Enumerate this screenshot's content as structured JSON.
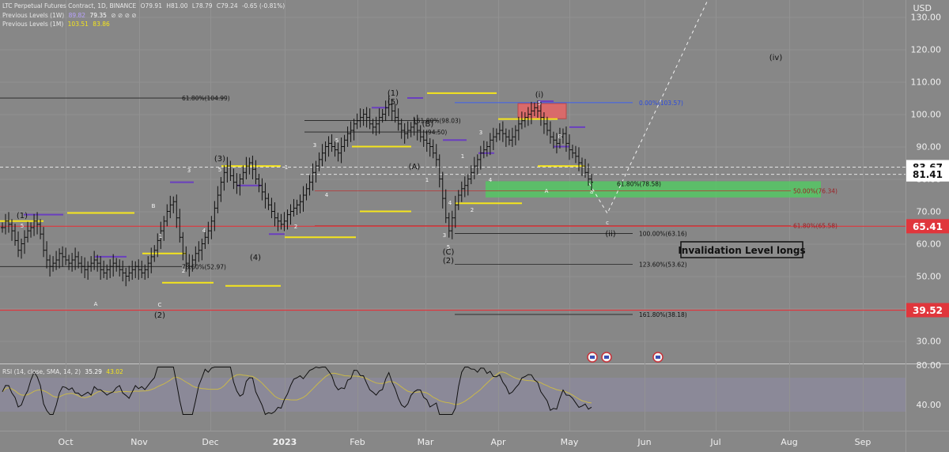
{
  "header": {
    "symbol_line": "LTC Perpetual Futures Contract, 1D, BINANCE",
    "ohlc": [
      "O79.91",
      "H81.00",
      "L78.79",
      "C79.24",
      "-0.65 (-0.81%)"
    ],
    "prev_1w_label": "Previous Levels (1W)",
    "prev_1w_values": [
      "89.82",
      "79.35",
      "⊘ ⊘ ⊘ ⊘"
    ],
    "prev_1m_label": "Previous Levels (1M)",
    "prev_1m_values": [
      "103.51",
      "83.86"
    ]
  },
  "rsi_header": {
    "label": "RSI (14, close, SMA, 14, 2)",
    "rsi_value": "35.29",
    "sma_value": "43.02"
  },
  "axis": {
    "unit": "USD"
  },
  "colors": {
    "background": "#878787",
    "candle": "#101010",
    "rsi_line": "#101010",
    "rsi_sma": "#c9b84a",
    "yellow_levels": "#f5e51c",
    "purple_levels": "#6a3fbf",
    "red_lines": "#e0363c",
    "blue_line": "#3d5ff0",
    "green_zone": "#55c764",
    "red_zone": "#d96a6a"
  },
  "chart_data": {
    "type": "candlestick",
    "title": "LTC Perpetual Futures Contract, 1D, BINANCE",
    "y_axis": {
      "unit": "USD",
      "ticks": [
        30,
        40,
        50,
        60,
        70,
        80,
        90,
        100,
        110,
        120,
        130
      ],
      "range": [
        25,
        140
      ]
    },
    "x_axis": {
      "ticks": [
        "Oct",
        "Nov",
        "Dec",
        "2023",
        "Feb",
        "Mar",
        "Apr",
        "May",
        "Jun",
        "Jul",
        "Aug",
        "Sep"
      ]
    },
    "price_labels": [
      {
        "text": "83.67",
        "value": 83.67,
        "style": "white"
      },
      {
        "text": "81.41",
        "value": 81.41,
        "style": "white"
      },
      {
        "text": "65.41",
        "value": 65.41,
        "style": "red"
      },
      {
        "text": "39.52",
        "value": 39.52,
        "style": "red"
      }
    ],
    "fib_levels": [
      {
        "text": "61.80%(104.99)",
        "value": 104.99,
        "side": "left"
      },
      {
        "text": "78.60%(52.97)",
        "value": 52.97,
        "side": "left"
      },
      {
        "text": "161.80%(98.03)",
        "value": 98.03,
        "side": "mid"
      },
      {
        "text": "(94.50)",
        "value": 94.5,
        "side": "mid"
      },
      {
        "text": "0.00%(103.57)",
        "value": 103.57,
        "side": "right",
        "color": "blue"
      },
      {
        "text": "61.80%(78.58)",
        "value": 78.58,
        "side": "right"
      },
      {
        "text": "50.00%(76.34)",
        "value": 76.34,
        "side": "right",
        "color": "red"
      },
      {
        "text": "61.80%(65.58)",
        "value": 65.58,
        "side": "right",
        "color": "red"
      },
      {
        "text": "100.00%(63.16)",
        "value": 63.16,
        "side": "right"
      },
      {
        "text": "123.60%(53.62)",
        "value": 53.62,
        "side": "right"
      },
      {
        "text": "161.80%(38.18)",
        "value": 38.18,
        "side": "right"
      }
    ],
    "wave_labels": [
      "(1)",
      "5",
      "(2)",
      "(3)",
      "3",
      "(4)",
      "(5)",
      "(1)",
      "(2)",
      "(i)",
      "(ii)",
      "(iv)",
      "A",
      "B",
      "C",
      "(A)",
      "(B)",
      "(C)",
      "1",
      "2",
      "4",
      "a",
      "c"
    ],
    "annotation": "Invalidation Level longs",
    "rsi": {
      "ticks": [
        40,
        80
      ],
      "range": [
        20,
        90
      ],
      "last_rsi": 35.29,
      "last_sma": 43.02
    },
    "closes": [
      65,
      67,
      66,
      64,
      61,
      58,
      60,
      62,
      64,
      65,
      67,
      66,
      63,
      58,
      55,
      53,
      54,
      55,
      57,
      56,
      55,
      54,
      55,
      56,
      54,
      53,
      52,
      53,
      54,
      55,
      54,
      52,
      51,
      52,
      53,
      54,
      53,
      52,
      51,
      50,
      51,
      52,
      53,
      52,
      51,
      52,
      54,
      56,
      58,
      61,
      64,
      67,
      70,
      72,
      73,
      68,
      62,
      57,
      54,
      53,
      55,
      57,
      58,
      60,
      62,
      64,
      67,
      71,
      75,
      79,
      82,
      84,
      81,
      79,
      78,
      80,
      82,
      84,
      85,
      83,
      80,
      78,
      76,
      74,
      72,
      70,
      68,
      67,
      66,
      67,
      69,
      70,
      71,
      72,
      73,
      75,
      77,
      79,
      82,
      84,
      86,
      88,
      90,
      91,
      90,
      89,
      88,
      90,
      92,
      94,
      95,
      97,
      98,
      99,
      100,
      99,
      97,
      96,
      97,
      99,
      100,
      102,
      103,
      101,
      99,
      97,
      95,
      94,
      95,
      96,
      97,
      95,
      93,
      92,
      91,
      90,
      88,
      86,
      80,
      74,
      68,
      64,
      68,
      72,
      75,
      77,
      78,
      80,
      82,
      84,
      86,
      88,
      89,
      90,
      92,
      93,
      94,
      95,
      94,
      93,
      92,
      93,
      95,
      97,
      98,
      99,
      100,
      101,
      102,
      101,
      99,
      97,
      95,
      93,
      92,
      91,
      93,
      94,
      91,
      89,
      88,
      87,
      85,
      84,
      82,
      80,
      79
    ]
  }
}
